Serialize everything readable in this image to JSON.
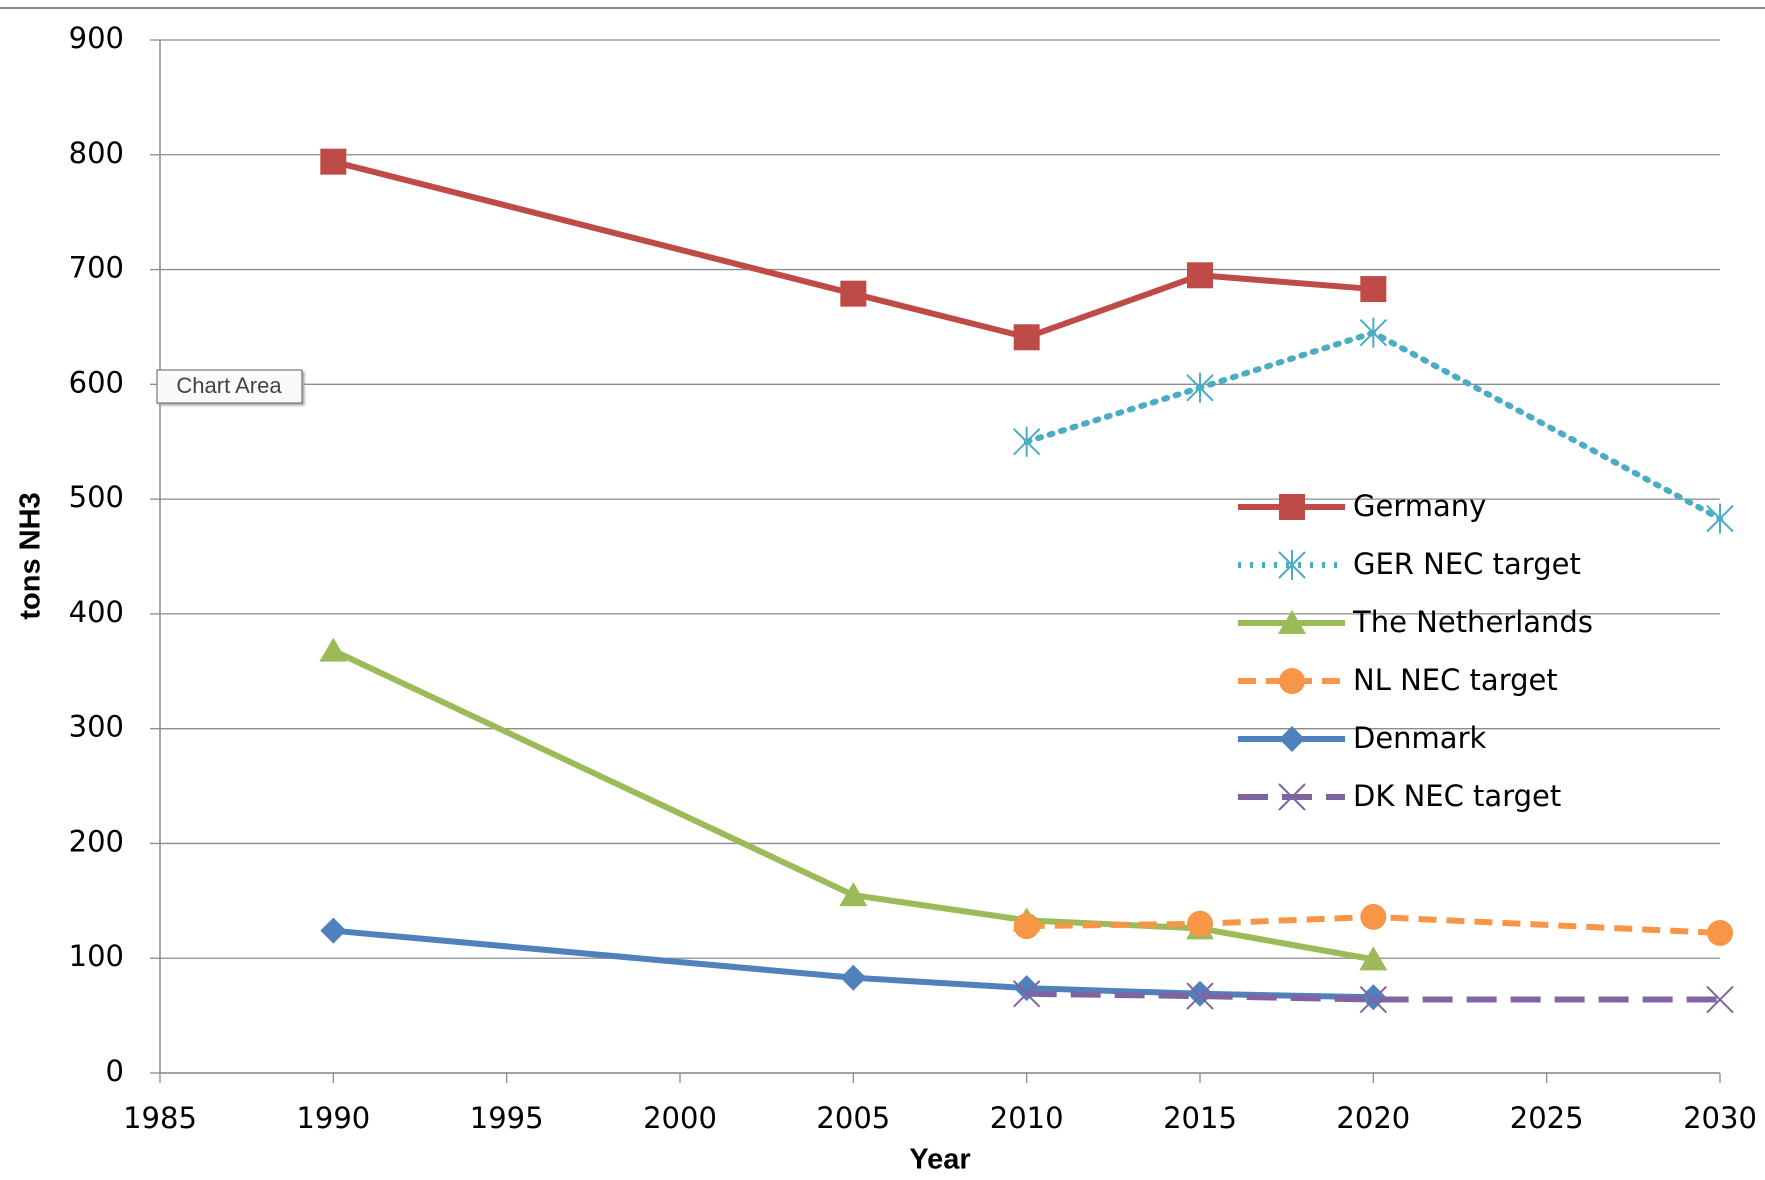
{
  "chart_data": {
    "type": "line",
    "x": [
      1990,
      2005,
      2010,
      2015,
      2020,
      2030
    ],
    "series": [
      {
        "name": "Germany",
        "color": "#be4b48",
        "marker": "square",
        "dash": "solid",
        "values": [
          794,
          679,
          641,
          695,
          683,
          null
        ]
      },
      {
        "name": "GER NEC target",
        "color": "#4bacc6",
        "marker": "star",
        "dash": "dot",
        "values": [
          null,
          null,
          550,
          597,
          645,
          483
        ]
      },
      {
        "name": "The Netherlands",
        "color": "#9bbb59",
        "marker": "triangle",
        "dash": "solid",
        "values": [
          368,
          155,
          133,
          126,
          99,
          null
        ]
      },
      {
        "name": "NL NEC target",
        "color": "#f79646",
        "marker": "circle",
        "dash": "dash",
        "values": [
          null,
          null,
          128,
          130,
          136,
          122
        ]
      },
      {
        "name": "Denmark",
        "color": "#4f81bd",
        "marker": "diamond",
        "dash": "solid",
        "values": [
          124,
          83,
          74,
          69,
          66,
          null
        ]
      },
      {
        "name": "DK NEC target",
        "color": "#8064a2",
        "marker": "x",
        "dash": "longdash",
        "values": [
          null,
          null,
          69,
          67,
          64,
          64
        ]
      }
    ],
    "xlim": [
      1985,
      2030
    ],
    "xticks": [
      1985,
      1990,
      1995,
      2000,
      2005,
      2010,
      2015,
      2020,
      2025,
      2030
    ],
    "ylim": [
      0,
      900
    ],
    "yticks": [
      0,
      100,
      200,
      300,
      400,
      500,
      600,
      700,
      800,
      900
    ],
    "grid": true,
    "legend": "right",
    "x_label": "Year",
    "y_label": "tons NH3",
    "tooltip": "Chart Area"
  }
}
